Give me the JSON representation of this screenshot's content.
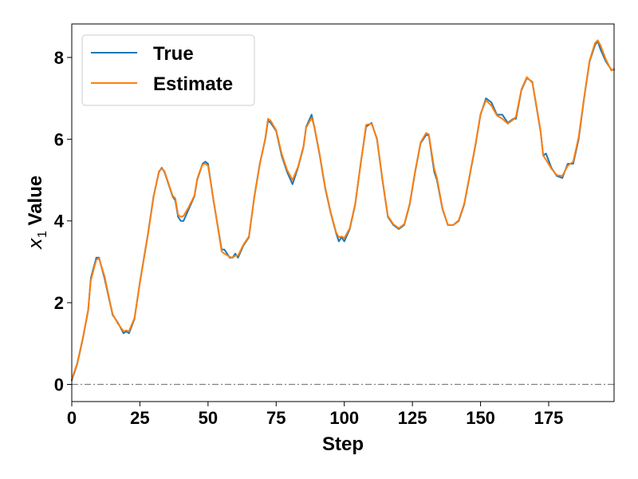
{
  "chart_data": {
    "type": "line",
    "title": "",
    "xlabel": "Step",
    "ylabel_var": "x",
    "ylabel_sub": "1",
    "ylabel_rest": "Value",
    "xlim": [
      0,
      199
    ],
    "ylim": [
      -0.42,
      8.82
    ],
    "xticks": [
      0,
      25,
      50,
      75,
      100,
      125,
      150,
      175
    ],
    "xtick_labels": [
      "0",
      "25",
      "50",
      "75",
      "100",
      "125",
      "150",
      "175"
    ],
    "yticks": [
      0,
      2,
      4,
      6,
      8
    ],
    "ytick_labels": [
      "0",
      "2",
      "4",
      "6",
      "8"
    ],
    "grid": false,
    "legend_position": "top-left",
    "reference_line": {
      "y": 0,
      "style": "dash-dot",
      "color": "#808080"
    },
    "series": [
      {
        "name": "True",
        "color": "#1f77b4",
        "points": [
          [
            0,
            0.1
          ],
          [
            2,
            0.5
          ],
          [
            4,
            1.1
          ],
          [
            6,
            1.8
          ],
          [
            7,
            2.6
          ],
          [
            9,
            3.1
          ],
          [
            10,
            3.1
          ],
          [
            12,
            2.6
          ],
          [
            14,
            2.0
          ],
          [
            15,
            1.7
          ],
          [
            17,
            1.5
          ],
          [
            19,
            1.25
          ],
          [
            20,
            1.3
          ],
          [
            21,
            1.25
          ],
          [
            23,
            1.6
          ],
          [
            25,
            2.5
          ],
          [
            28,
            3.7
          ],
          [
            30,
            4.6
          ],
          [
            32,
            5.2
          ],
          [
            33,
            5.3
          ],
          [
            34,
            5.2
          ],
          [
            35,
            5.0
          ],
          [
            37,
            4.6
          ],
          [
            38,
            4.5
          ],
          [
            39,
            4.1
          ],
          [
            40,
            4.0
          ],
          [
            41,
            4.0
          ],
          [
            43,
            4.3
          ],
          [
            45,
            4.6
          ],
          [
            46,
            5.0
          ],
          [
            47,
            5.2
          ],
          [
            48,
            5.4
          ],
          [
            49,
            5.45
          ],
          [
            50,
            5.4
          ],
          [
            52,
            4.5
          ],
          [
            55,
            3.3
          ],
          [
            56,
            3.3
          ],
          [
            58,
            3.1
          ],
          [
            59,
            3.1
          ],
          [
            60,
            3.2
          ],
          [
            61,
            3.1
          ],
          [
            63,
            3.4
          ],
          [
            65,
            3.6
          ],
          [
            67,
            4.6
          ],
          [
            69,
            5.4
          ],
          [
            71,
            6.0
          ],
          [
            72,
            6.45
          ],
          [
            73,
            6.4
          ],
          [
            75,
            6.2
          ],
          [
            77,
            5.6
          ],
          [
            79,
            5.2
          ],
          [
            81,
            4.9
          ],
          [
            83,
            5.3
          ],
          [
            85,
            5.8
          ],
          [
            86,
            6.3
          ],
          [
            88,
            6.6
          ],
          [
            89,
            6.3
          ],
          [
            91,
            5.6
          ],
          [
            93,
            4.8
          ],
          [
            95,
            4.2
          ],
          [
            97,
            3.7
          ],
          [
            98,
            3.5
          ],
          [
            99,
            3.6
          ],
          [
            100,
            3.5
          ],
          [
            102,
            3.8
          ],
          [
            104,
            4.4
          ],
          [
            106,
            5.4
          ],
          [
            108,
            6.3
          ],
          [
            110,
            6.4
          ],
          [
            112,
            6.0
          ],
          [
            114,
            5.0
          ],
          [
            116,
            4.1
          ],
          [
            118,
            3.9
          ],
          [
            120,
            3.8
          ],
          [
            122,
            3.9
          ],
          [
            124,
            4.4
          ],
          [
            126,
            5.2
          ],
          [
            128,
            5.9
          ],
          [
            130,
            6.1
          ],
          [
            131,
            6.1
          ],
          [
            133,
            5.2
          ],
          [
            134,
            5.0
          ],
          [
            136,
            4.3
          ],
          [
            138,
            3.9
          ],
          [
            140,
            3.9
          ],
          [
            142,
            4.0
          ],
          [
            144,
            4.4
          ],
          [
            146,
            5.1
          ],
          [
            148,
            5.8
          ],
          [
            150,
            6.6
          ],
          [
            152,
            7.0
          ],
          [
            154,
            6.9
          ],
          [
            156,
            6.6
          ],
          [
            158,
            6.6
          ],
          [
            160,
            6.4
          ],
          [
            162,
            6.5
          ],
          [
            163,
            6.5
          ],
          [
            165,
            7.2
          ],
          [
            167,
            7.5
          ],
          [
            169,
            7.4
          ],
          [
            170,
            7.0
          ],
          [
            172,
            6.2
          ],
          [
            173,
            5.6
          ],
          [
            174,
            5.65
          ],
          [
            176,
            5.3
          ],
          [
            178,
            5.1
          ],
          [
            180,
            5.05
          ],
          [
            182,
            5.4
          ],
          [
            184,
            5.4
          ],
          [
            186,
            6.0
          ],
          [
            188,
            7.0
          ],
          [
            190,
            7.9
          ],
          [
            192,
            8.3
          ],
          [
            193,
            8.4
          ],
          [
            194,
            8.2
          ],
          [
            196,
            7.9
          ],
          [
            198,
            7.7
          ],
          [
            199,
            7.7
          ]
        ]
      },
      {
        "name": "Estimate",
        "color": "#ff7f0e",
        "points": [
          [
            0,
            0.12
          ],
          [
            2,
            0.52
          ],
          [
            4,
            1.12
          ],
          [
            6,
            1.82
          ],
          [
            7,
            2.55
          ],
          [
            9,
            3.05
          ],
          [
            10,
            3.08
          ],
          [
            12,
            2.65
          ],
          [
            14,
            2.02
          ],
          [
            15,
            1.72
          ],
          [
            17,
            1.48
          ],
          [
            19,
            1.3
          ],
          [
            20,
            1.32
          ],
          [
            21,
            1.3
          ],
          [
            23,
            1.62
          ],
          [
            25,
            2.48
          ],
          [
            28,
            3.68
          ],
          [
            30,
            4.58
          ],
          [
            32,
            5.22
          ],
          [
            33,
            5.28
          ],
          [
            34,
            5.22
          ],
          [
            35,
            5.02
          ],
          [
            37,
            4.62
          ],
          [
            38,
            4.55
          ],
          [
            39,
            4.15
          ],
          [
            40,
            4.1
          ],
          [
            41,
            4.12
          ],
          [
            43,
            4.35
          ],
          [
            45,
            4.62
          ],
          [
            46,
            5.02
          ],
          [
            47,
            5.22
          ],
          [
            48,
            5.38
          ],
          [
            49,
            5.4
          ],
          [
            50,
            5.35
          ],
          [
            52,
            4.52
          ],
          [
            55,
            3.25
          ],
          [
            56,
            3.2
          ],
          [
            58,
            3.12
          ],
          [
            59,
            3.1
          ],
          [
            60,
            3.15
          ],
          [
            61,
            3.15
          ],
          [
            63,
            3.42
          ],
          [
            65,
            3.62
          ],
          [
            67,
            4.58
          ],
          [
            69,
            5.38
          ],
          [
            71,
            6.02
          ],
          [
            72,
            6.5
          ],
          [
            73,
            6.45
          ],
          [
            75,
            6.22
          ],
          [
            77,
            5.65
          ],
          [
            79,
            5.25
          ],
          [
            81,
            5.0
          ],
          [
            83,
            5.32
          ],
          [
            85,
            5.82
          ],
          [
            86,
            6.28
          ],
          [
            88,
            6.52
          ],
          [
            89,
            6.32
          ],
          [
            91,
            5.62
          ],
          [
            93,
            4.82
          ],
          [
            95,
            4.22
          ],
          [
            97,
            3.72
          ],
          [
            98,
            3.6
          ],
          [
            99,
            3.62
          ],
          [
            100,
            3.58
          ],
          [
            102,
            3.82
          ],
          [
            104,
            4.42
          ],
          [
            106,
            5.38
          ],
          [
            108,
            6.35
          ],
          [
            110,
            6.38
          ],
          [
            112,
            6.02
          ],
          [
            114,
            5.02
          ],
          [
            116,
            4.12
          ],
          [
            118,
            3.92
          ],
          [
            120,
            3.82
          ],
          [
            122,
            3.92
          ],
          [
            124,
            4.42
          ],
          [
            126,
            5.22
          ],
          [
            128,
            5.92
          ],
          [
            130,
            6.15
          ],
          [
            131,
            6.12
          ],
          [
            133,
            5.28
          ],
          [
            134,
            5.05
          ],
          [
            136,
            4.32
          ],
          [
            138,
            3.9
          ],
          [
            140,
            3.9
          ],
          [
            142,
            4.02
          ],
          [
            144,
            4.42
          ],
          [
            146,
            5.12
          ],
          [
            148,
            5.82
          ],
          [
            150,
            6.62
          ],
          [
            152,
            6.95
          ],
          [
            154,
            6.82
          ],
          [
            156,
            6.58
          ],
          [
            158,
            6.5
          ],
          [
            160,
            6.38
          ],
          [
            162,
            6.48
          ],
          [
            163,
            6.55
          ],
          [
            165,
            7.22
          ],
          [
            167,
            7.52
          ],
          [
            169,
            7.38
          ],
          [
            170,
            7.02
          ],
          [
            172,
            6.22
          ],
          [
            173,
            5.6
          ],
          [
            174,
            5.5
          ],
          [
            176,
            5.28
          ],
          [
            178,
            5.12
          ],
          [
            180,
            5.1
          ],
          [
            182,
            5.35
          ],
          [
            184,
            5.45
          ],
          [
            186,
            6.05
          ],
          [
            188,
            7.02
          ],
          [
            190,
            7.92
          ],
          [
            192,
            8.35
          ],
          [
            193,
            8.42
          ],
          [
            194,
            8.3
          ],
          [
            196,
            7.95
          ],
          [
            198,
            7.68
          ],
          [
            199,
            7.72
          ]
        ]
      }
    ]
  }
}
